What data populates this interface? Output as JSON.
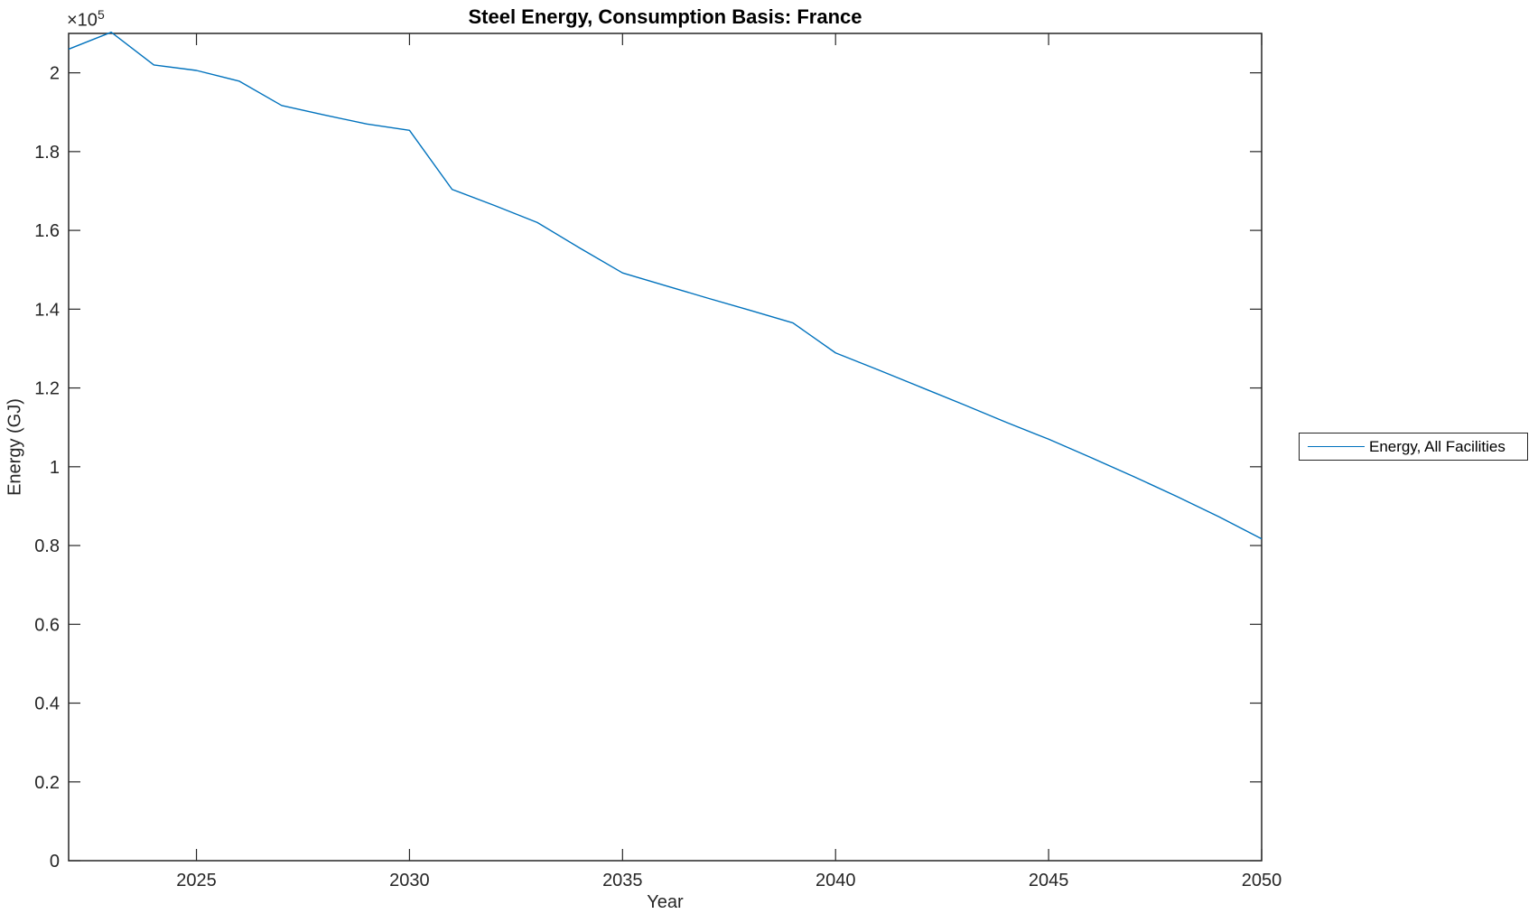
{
  "figure": {
    "scale_base": "×10",
    "scale_exponent": "5"
  },
  "legend": {
    "position": "outside-right-center",
    "entries": [
      {
        "label": "Energy, All Facilities",
        "color": "#0072BD"
      }
    ]
  },
  "chart_data": {
    "type": "line",
    "title": "Steel Energy, Consumption Basis: France",
    "xlabel": "Year",
    "ylabel": "Energy (GJ)",
    "y_scale_label": "×10^5",
    "grid": false,
    "axis_color": "#262626",
    "background_color": "#ffffff",
    "xlim": [
      2022,
      2050
    ],
    "ylim": [
      0,
      210000
    ],
    "xticks": [
      2025,
      2030,
      2035,
      2040,
      2045,
      2050
    ],
    "ytick_values": [
      0,
      20000,
      40000,
      60000,
      80000,
      100000,
      120000,
      140000,
      160000,
      180000,
      200000
    ],
    "ytick_labels": [
      "0",
      "0.2",
      "0.4",
      "0.6",
      "0.8",
      "1",
      "1.2",
      "1.4",
      "1.6",
      "1.8",
      "2"
    ],
    "legend_position": "outside-right-center",
    "series": [
      {
        "name": "Energy, All Facilities",
        "color": "#0072BD",
        "x": [
          2022,
          2023,
          2024,
          2025,
          2026,
          2027,
          2028,
          2029,
          2030,
          2031,
          2032,
          2033,
          2034,
          2035,
          2036,
          2037,
          2038,
          2039,
          2040,
          2041,
          2042,
          2043,
          2044,
          2045,
          2046,
          2047,
          2048,
          2049,
          2050
        ],
        "y": [
          206000,
          210300,
          202000,
          200600,
          197900,
          191700,
          189300,
          187000,
          185400,
          170400,
          166300,
          162000,
          155500,
          149200,
          146000,
          142800,
          139700,
          136500,
          128900,
          124600,
          120200,
          115800,
          111300,
          107000,
          102300,
          97500,
          92500,
          87300,
          81700
        ]
      }
    ]
  }
}
